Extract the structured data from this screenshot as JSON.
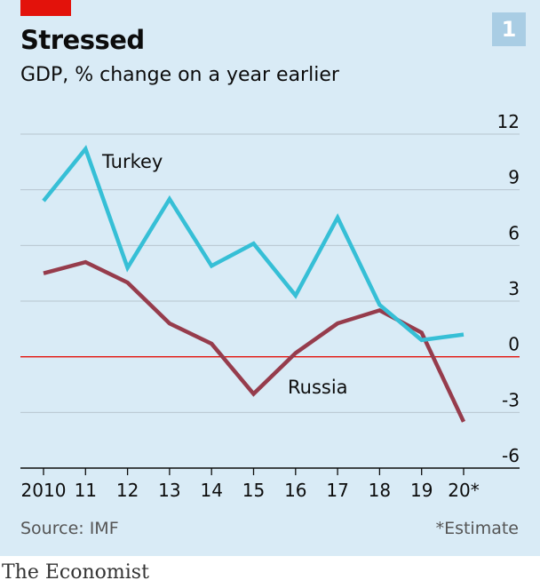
{
  "header": {
    "title": "Stressed",
    "subtitle": "GDP, % change on a year earlier",
    "badge": "1"
  },
  "footer": {
    "source": "Source: IMF",
    "note": "*Estimate",
    "brand": "The Economist"
  },
  "colors": {
    "background": "#d9ebf6",
    "turkey": "#36bfd6",
    "russia": "#963c4c",
    "zero_line": "#e3120b",
    "grid": "#b7c6cf",
    "accent": "#e3120b"
  },
  "chart_data": {
    "type": "line",
    "categories": [
      "2010",
      "11",
      "12",
      "13",
      "14",
      "15",
      "16",
      "17",
      "18",
      "19",
      "20*"
    ],
    "series": [
      {
        "name": "Turkey",
        "values": [
          8.4,
          11.2,
          4.8,
          8.5,
          4.9,
          6.1,
          3.3,
          7.5,
          2.8,
          0.9,
          1.2
        ]
      },
      {
        "name": "Russia",
        "values": [
          4.5,
          5.1,
          4.0,
          1.8,
          0.7,
          -2.0,
          0.2,
          1.8,
          2.5,
          1.3,
          -3.5
        ]
      }
    ],
    "yticks": [
      12,
      9,
      6,
      3,
      0,
      -3,
      -6
    ],
    "ylim": [
      -6,
      12
    ],
    "grid": true,
    "xlabel": "",
    "ylabel": ""
  }
}
